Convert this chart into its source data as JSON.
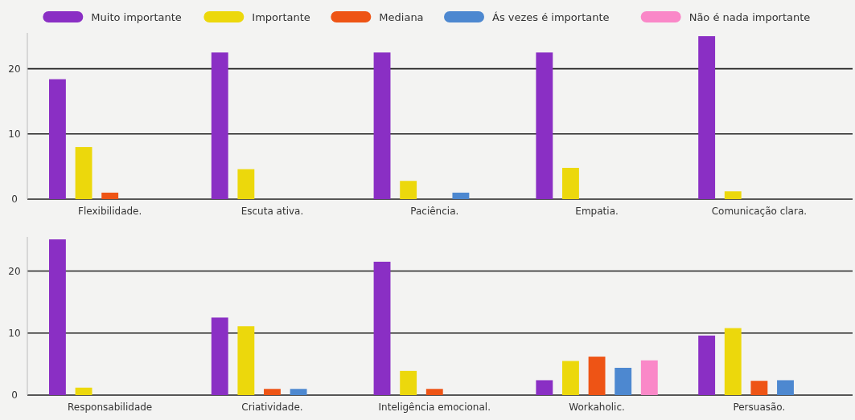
{
  "chart_data": [
    {
      "type": "bar",
      "categories": [
        "Flexibilidade.",
        "Escuta ativa.",
        "Paciência.",
        "Empatia.",
        "Comunicação clara."
      ],
      "series": [
        {
          "name": "Muito importante",
          "color": "#8a2fc4",
          "values": [
            18.4,
            22.5,
            22.5,
            22.5,
            25
          ]
        },
        {
          "name": "Importante",
          "color": "#ecd80c",
          "values": [
            8,
            4.6,
            2.8,
            4.8,
            1.2
          ]
        },
        {
          "name": "Mediana",
          "color": "#ee5415",
          "values": [
            1,
            null,
            null,
            null,
            null
          ]
        },
        {
          "name": "Ás vezes é importante",
          "color": "#4d88d0",
          "values": [
            null,
            null,
            1,
            null,
            null
          ]
        },
        {
          "name": "Não é nada importante",
          "color": "#fa88c8",
          "values": [
            null,
            null,
            null,
            null,
            null
          ]
        }
      ],
      "ylim": [
        0,
        25.5
      ],
      "yticks": [
        0,
        10,
        20
      ],
      "grid": "y",
      "legend": "top"
    },
    {
      "type": "bar",
      "categories": [
        "Responsabilidade",
        "Criatividade.",
        "Inteligência emocional.",
        "Workaholic.",
        "Persuasão."
      ],
      "series": [
        {
          "color": "#8a2fc4",
          "values": [
            25.1,
            12.5,
            21.5,
            2.4,
            9.6
          ]
        },
        {
          "color": "#ecd80c",
          "values": [
            1.2,
            11.1,
            3.9,
            5.5,
            10.8
          ]
        },
        {
          "color": "#ee5415",
          "values": [
            null,
            1,
            1,
            6.2,
            2.3
          ]
        },
        {
          "color": "#4d88d0",
          "values": [
            null,
            1,
            null,
            4.4,
            2.4
          ]
        },
        {
          "color": "#fa88c8",
          "values": [
            null,
            null,
            null,
            5.6,
            null
          ]
        }
      ],
      "ylim": [
        0,
        25.5
      ],
      "yticks": [
        0,
        10,
        20
      ],
      "grid": "y"
    }
  ]
}
